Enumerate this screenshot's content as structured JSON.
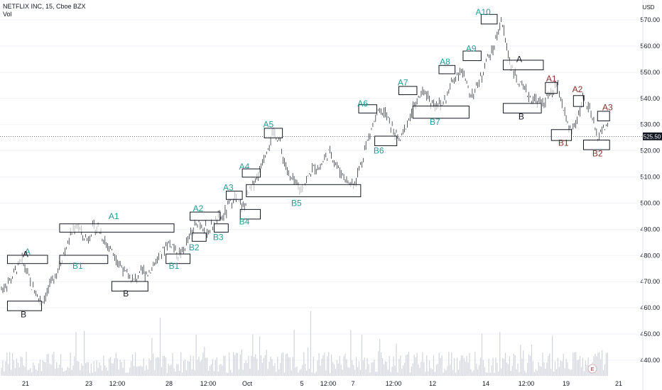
{
  "header": {
    "symbol": "NETFLIX INC, 15, Cboe BZX",
    "volume_label": "Vol"
  },
  "axis": {
    "currency": "USD",
    "last_price_label": "525.50",
    "earnings_marker": "E"
  },
  "colors": {
    "teal": "#1e9e96",
    "maroon": "#8b2a2a",
    "dark": "#131722",
    "box_fill": "#ffffff",
    "box_stroke": "#131722",
    "candle": "#131722",
    "volume": "#d1d4dc",
    "grid": "#f0f3fa",
    "last_price_bg": "#131722"
  },
  "chart_data": {
    "type": "line",
    "title": "NETFLIX INC, 15, Cboe BZX",
    "ylabel": "USD",
    "ylim": [
      433,
      575
    ],
    "y_ticks": [
      440,
      450,
      460,
      470,
      480,
      490,
      500,
      510,
      520,
      530,
      540,
      550,
      560,
      570
    ],
    "y_tick_labels": [
      "440.00",
      "450.00",
      "460.00",
      "470.00",
      "480.00",
      "490.00",
      "500.00",
      "510.00",
      "520.00",
      "530.00",
      "540.00",
      "550.00",
      "560.00",
      "570.00"
    ],
    "x_tick_labels": [
      "21",
      "23",
      "12:00",
      "28",
      "12:00",
      "Oct",
      "5",
      "12:00",
      "7",
      "12:00",
      "12",
      "14",
      "12:00",
      "19",
      "21"
    ],
    "last_price": 525.5,
    "series": [
      {
        "x": [
          0,
          1,
          2,
          3,
          4,
          5,
          6,
          7,
          8,
          9,
          10,
          11,
          12,
          13,
          14,
          15,
          16,
          17,
          18,
          19,
          20,
          21,
          22,
          23,
          24,
          25,
          26,
          27,
          28,
          29,
          30,
          31,
          32,
          33,
          34,
          35,
          36,
          37,
          38,
          39,
          40,
          41,
          42,
          43,
          44,
          45,
          46,
          47,
          48,
          49,
          50,
          51,
          52,
          53,
          54,
          55,
          56,
          57,
          58,
          59,
          60,
          61,
          62,
          63,
          64,
          65,
          66,
          67,
          68,
          69,
          70,
          71,
          72,
          73,
          74,
          75,
          76,
          77,
          78,
          79,
          80,
          81,
          82,
          83,
          84,
          85,
          86,
          87,
          88,
          89,
          90,
          91,
          92,
          93,
          94,
          95,
          96,
          97,
          98,
          99,
          100,
          101,
          102,
          103,
          104,
          105,
          106,
          107,
          108,
          109,
          110,
          111,
          112,
          113,
          114,
          115,
          116,
          117,
          118,
          119,
          120
        ],
        "y": [
          467,
          469,
          471,
          475,
          478,
          474,
          468,
          465,
          462,
          466,
          470,
          474,
          479,
          484,
          489,
          492,
          488,
          486,
          490,
          491,
          487,
          484,
          482,
          478,
          475,
          472,
          470,
          472,
          474,
          473,
          476,
          479,
          482,
          485,
          484,
          480,
          482,
          486,
          490,
          493,
          491,
          489,
          492,
          494,
          495,
          499,
          502,
          500,
          498,
          504,
          508,
          512,
          518,
          523,
          527,
          524,
          516,
          510,
          508,
          505,
          507,
          511,
          514,
          513,
          517,
          520,
          516,
          512,
          510,
          507,
          508,
          514,
          521,
          527,
          532,
          535,
          534,
          530,
          526,
          524,
          529,
          534,
          538,
          541,
          543,
          539,
          538,
          537,
          540,
          545,
          549,
          551,
          546,
          541,
          544,
          548,
          555,
          557,
          563,
          570,
          560,
          552,
          547,
          544,
          542,
          540,
          539,
          538,
          540,
          542,
          545,
          538,
          530,
          527,
          532,
          540,
          537,
          532,
          525,
          528,
          530
        ]
      }
    ],
    "annotations": {
      "teal": [
        {
          "text": "A",
          "x": 6.5,
          "y": 481.5
        },
        {
          "text": "B1",
          "x": 19,
          "y": 476
        },
        {
          "text": "A1",
          "x": 28,
          "y": 495
        },
        {
          "text": "B1",
          "x": 43,
          "y": 476
        },
        {
          "text": "A2",
          "x": 49,
          "y": 498
        },
        {
          "text": "B2",
          "x": 48,
          "y": 483
        },
        {
          "text": "B3",
          "x": 54,
          "y": 487
        },
        {
          "text": "A3",
          "x": 56.5,
          "y": 506
        },
        {
          "text": "B4",
          "x": 60.5,
          "y": 493
        },
        {
          "text": "A4",
          "x": 60.5,
          "y": 514
        },
        {
          "text": "A5",
          "x": 66.5,
          "y": 530
        },
        {
          "text": "B5",
          "x": 73.5,
          "y": 500
        },
        {
          "text": "A6",
          "x": 90,
          "y": 538
        },
        {
          "text": "B6",
          "x": 94,
          "y": 520
        },
        {
          "text": "A7",
          "x": 100,
          "y": 546
        },
        {
          "text": "B7",
          "x": 108,
          "y": 531
        },
        {
          "text": "A8",
          "x": 110.5,
          "y": 554
        },
        {
          "text": "A9",
          "x": 117,
          "y": 559
        },
        {
          "text": "A10",
          "x": 120,
          "y": 573
        }
      ],
      "dark": [
        {
          "text": "A",
          "x": 6,
          "y": 480.5
        },
        {
          "text": "B",
          "x": 5.5,
          "y": 457.5
        },
        {
          "text": "B",
          "x": 31,
          "y": 465.5
        },
        {
          "text": "A",
          "x": 129,
          "y": 555
        },
        {
          "text": "B",
          "x": 129.5,
          "y": 533
        }
      ],
      "maroon": [
        {
          "text": "A1",
          "x": 137,
          "y": 547.5
        },
        {
          "text": "A2",
          "x": 143.5,
          "y": 543.5
        },
        {
          "text": "A3",
          "x": 151,
          "y": 536.5
        },
        {
          "text": "B1",
          "x": 140,
          "y": 523
        },
        {
          "text": "B2",
          "x": 148.5,
          "y": 519
        }
      ]
    },
    "boxes": [
      {
        "x0": 1.5,
        "x1": 11.5,
        "y0": 478,
        "y1": 479
      },
      {
        "x0": 1.5,
        "x1": 10,
        "y0": 460,
        "y1": 461.5
      },
      {
        "x0": 14.5,
        "x1": 43,
        "y0": 490,
        "y1": 491
      },
      {
        "x0": 14.5,
        "x1": 26.5,
        "y0": 478,
        "y1": 479
      },
      {
        "x0": 27.5,
        "x1": 36.5,
        "y0": 467.5,
        "y1": 469
      },
      {
        "x0": 41,
        "x1": 47,
        "y0": 478,
        "y1": 479.5
      },
      {
        "x0": 47,
        "x1": 54.5,
        "y0": 494.5,
        "y1": 495.5
      },
      {
        "x0": 47.5,
        "x1": 51,
        "y0": 486.5,
        "y1": 487.5
      },
      {
        "x0": 53,
        "x1": 56.5,
        "y0": 490,
        "y1": 491
      },
      {
        "x0": 56,
        "x1": 60,
        "y0": 502.5,
        "y1": 503.5
      },
      {
        "x0": 59.5,
        "x1": 64.5,
        "y0": 495,
        "y1": 496.5
      },
      {
        "x0": 60,
        "x1": 64.5,
        "y0": 511,
        "y1": 512
      },
      {
        "x0": 61,
        "x1": 89.5,
        "y0": 503.5,
        "y1": 506
      },
      {
        "x0": 65.5,
        "x1": 70,
        "y0": 526,
        "y1": 527.5
      },
      {
        "x0": 89,
        "x1": 93.5,
        "y0": 535.5,
        "y1": 536.5
      },
      {
        "x0": 93,
        "x1": 98.5,
        "y0": 523,
        "y1": 524.5
      },
      {
        "x0": 99,
        "x1": 103.5,
        "y0": 542.5,
        "y1": 543.5
      },
      {
        "x0": 102.5,
        "x1": 116.5,
        "y0": 533.5,
        "y1": 536
      },
      {
        "x0": 109,
        "x1": 113,
        "y0": 550.5,
        "y1": 551.5
      },
      {
        "x0": 115,
        "x1": 119.5,
        "y0": 555.5,
        "y1": 557
      },
      {
        "x0": 119.5,
        "x1": 123.5,
        "y0": 569.5,
        "y1": 571
      },
      {
        "x0": 125,
        "x1": 135,
        "y0": 552,
        "y1": 553.5
      },
      {
        "x0": 125,
        "x1": 134.5,
        "y0": 535.5,
        "y1": 537
      },
      {
        "x0": 135.5,
        "x1": 138.5,
        "y0": 543,
        "y1": 545
      },
      {
        "x0": 137,
        "x1": 142,
        "y0": 525,
        "y1": 527
      },
      {
        "x0": 142.5,
        "x1": 145,
        "y0": 538,
        "y1": 540
      },
      {
        "x0": 145,
        "x1": 151.5,
        "y0": 521.5,
        "y1": 523
      },
      {
        "x0": 148.5,
        "x1": 151.5,
        "y0": 532.5,
        "y1": 534
      }
    ]
  }
}
